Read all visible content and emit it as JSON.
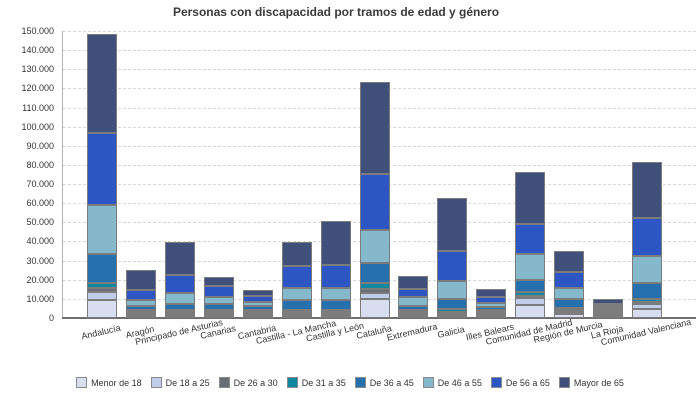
{
  "chart_data": {
    "type": "bar",
    "stacked": true,
    "title": "Personas con discapacidad por tramos de edad y género",
    "xlabel": "",
    "ylabel": "",
    "ylim": [
      0,
      150000
    ],
    "y_tick_step": 10000,
    "y_tick_labels": [
      "0",
      "10.000",
      "20.000",
      "30.000",
      "40.000",
      "50.000",
      "60.000",
      "70.000",
      "80.000",
      "90.000",
      "100.000",
      "110.000",
      "120.000",
      "130.000",
      "140.000",
      "150.000"
    ],
    "grid": "horizontal-dashed",
    "legend_position": "bottom",
    "categories": [
      "Andalucía",
      "Aragón",
      "Principado de Asturias",
      "Canarias",
      "Cantabria",
      "Castilla - La Mancha",
      "Castilla y León",
      "Cataluña",
      "Extremadura",
      "Galicia",
      "Illes Balears",
      "Comunidad de Madrid",
      "Región de Murcia",
      "La Rioja",
      "Comunidad Valenciana"
    ],
    "series": [
      {
        "name": "Menor de 18",
        "color": "#d8ddef",
        "values": [
          9400,
          400,
          600,
          700,
          400,
          1200,
          1200,
          9800,
          600,
          1200,
          1100,
          7000,
          2000,
          400,
          4700
        ]
      },
      {
        "name": "De 18 a 25",
        "color": "#c1cce9",
        "values": [
          4300,
          300,
          400,
          500,
          300,
          700,
          700,
          3100,
          400,
          600,
          500,
          3500,
          900,
          200,
          2500
        ]
      },
      {
        "name": "De 26 a 30",
        "color": "#696e74",
        "values": [
          1800,
          1100,
          1300,
          1100,
          700,
          700,
          700,
          2100,
          600,
          900,
          400,
          800,
          500,
          150,
          1300
        ]
      },
      {
        "name": "De 31 a 35",
        "color": "#0e87a0",
        "values": [
          2600,
          600,
          900,
          700,
          400,
          1000,
          1100,
          3100,
          500,
          1200,
          500,
          2000,
          900,
          200,
          1400
        ]
      },
      {
        "name": "De 36 a 45",
        "color": "#2570ad",
        "values": [
          15200,
          2000,
          2800,
          3000,
          1900,
          5000,
          5000,
          10800,
          2300,
          5600,
          1600,
          6100,
          4700,
          650,
          8200
        ]
      },
      {
        "name": "De 46 a 55",
        "color": "#86b8cb",
        "values": [
          25700,
          3200,
          5600,
          3900,
          2100,
          6200,
          6400,
          17100,
          4300,
          9200,
          2100,
          14000,
          6100,
          800,
          14500
        ]
      },
      {
        "name": "De 56 a 65",
        "color": "#2d55c3",
        "values": [
          37800,
          5400,
          9700,
          5500,
          3100,
          11600,
          12200,
          29100,
          4400,
          16000,
          3200,
          15700,
          7900,
          1300,
          19500
        ]
      },
      {
        "name": "Mayor de 65",
        "color": "#40507a",
        "values": [
          51700,
          10500,
          17200,
          4600,
          3600,
          12600,
          22700,
          48400,
          6900,
          27300,
          3800,
          26900,
          11300,
          2300,
          29300
        ]
      }
    ]
  }
}
